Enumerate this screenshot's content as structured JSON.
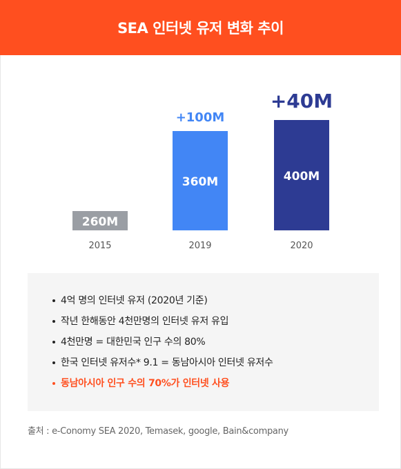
{
  "header": {
    "title": "SEA 인터넷 유저 변화 추이",
    "bg_color": "#ff4f1f"
  },
  "chart_data": {
    "type": "bar",
    "categories": [
      "2015",
      "2019",
      "2020"
    ],
    "values": [
      260,
      360,
      400
    ],
    "value_labels": [
      "260M",
      "360M",
      "400M"
    ],
    "increase_labels": [
      "",
      "+100M",
      "+40M"
    ],
    "colors": [
      "#9a9ea4",
      "#4286f5",
      "#2d3b93"
    ],
    "increase_colors": [
      "",
      "#4286f5",
      "#2d3b93"
    ],
    "title": "",
    "xlabel": "",
    "ylabel": "",
    "grid": false,
    "legend": "none"
  },
  "notes": [
    {
      "text": "4억 명의 인터넷 유저 (2020년 기준)",
      "highlight": false
    },
    {
      "text": "작년 한해동안 4천만명의 인터넷 유저 유입",
      "highlight": false
    },
    {
      "text": "4천만명 = 대한민국 인구 수의 80%",
      "highlight": false
    },
    {
      "text": "한국 인터넷 유저수* 9.1 = 동남아시아 인터넷 유저수",
      "highlight": false
    },
    {
      "text": "동남아시아 인구 수의 70%가 인터넷 사용",
      "highlight": true
    }
  ],
  "source": "출처 : e-Conomy SEA 2020, Temasek, google, Bain&company"
}
